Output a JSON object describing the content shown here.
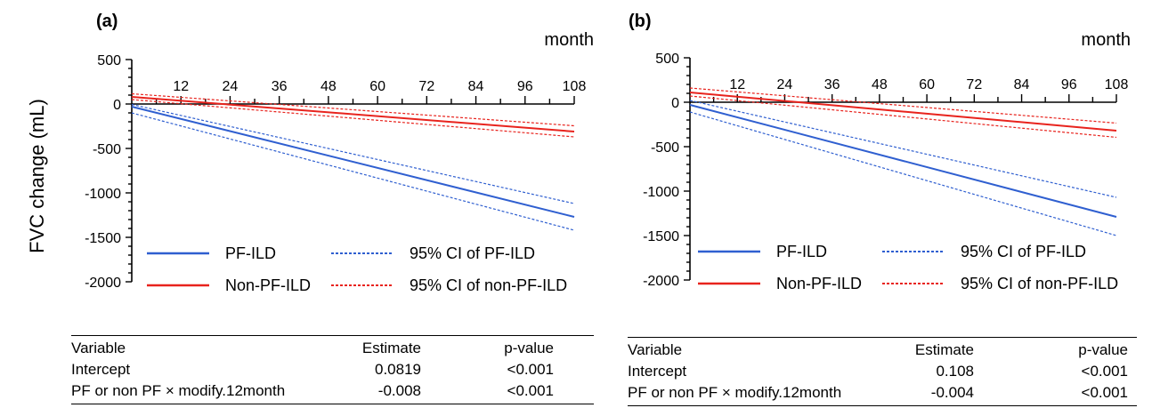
{
  "y_axis_label": "FVC change (mL)",
  "colors": {
    "pf": "#2f5fd0",
    "nonpf": "#e8231d",
    "axis": "#000000"
  },
  "legend": {
    "pf": "PF-ILD",
    "nonpf": "Non-PF-ILD",
    "pf_ci": "95% CI of PF-ILD",
    "nonpf_ci": "95% CI of non-PF-ILD"
  },
  "chart_data": [
    {
      "type": "line",
      "panel_label": "(a)",
      "xlabel": "month",
      "ylabel": "FVC change (mL)",
      "x_ticks": [
        12,
        24,
        36,
        48,
        60,
        72,
        84,
        96,
        108
      ],
      "y_ticks": [
        500,
        0,
        -500,
        -1000,
        -1500,
        -2000
      ],
      "xlim": [
        0,
        108
      ],
      "ylim": [
        -2000,
        500
      ],
      "x": [
        0,
        108
      ],
      "series": [
        {
          "name": "PF-ILD",
          "style": "solid",
          "values": [
            -30,
            -1270
          ]
        },
        {
          "name": "Non-PF-ILD",
          "style": "solid",
          "values": [
            80,
            -310
          ]
        },
        {
          "name": "95% CI of PF-ILD",
          "style": "dotted",
          "bound": "upper",
          "values": [
            -5,
            -1120
          ]
        },
        {
          "name": "95% CI of PF-ILD",
          "style": "dotted",
          "bound": "lower",
          "values": [
            -100,
            -1420
          ]
        },
        {
          "name": "95% CI of non-PF-ILD",
          "style": "dotted",
          "bound": "upper",
          "values": [
            115,
            -245
          ]
        },
        {
          "name": "95% CI of non-PF-ILD",
          "style": "dotted",
          "bound": "lower",
          "values": [
            50,
            -370
          ]
        }
      ],
      "legend_position": "bottom-center",
      "grid": false
    },
    {
      "type": "line",
      "panel_label": "(b)",
      "xlabel": "month",
      "ylabel": "",
      "x_ticks": [
        12,
        24,
        36,
        48,
        60,
        72,
        84,
        96,
        108
      ],
      "y_ticks": [
        500,
        0,
        -500,
        -1000,
        -1500,
        -2000
      ],
      "xlim": [
        0,
        108
      ],
      "ylim": [
        -2000,
        500
      ],
      "x": [
        0,
        108
      ],
      "series": [
        {
          "name": "PF-ILD",
          "style": "solid",
          "values": [
            -30,
            -1290
          ]
        },
        {
          "name": "Non-PF-ILD",
          "style": "solid",
          "values": [
            110,
            -320
          ]
        },
        {
          "name": "95% CI of PF-ILD",
          "style": "dotted",
          "bound": "upper",
          "values": [
            20,
            -1070
          ]
        },
        {
          "name": "95% CI of PF-ILD",
          "style": "dotted",
          "bound": "lower",
          "values": [
            -110,
            -1500
          ]
        },
        {
          "name": "95% CI of non-PF-ILD",
          "style": "dotted",
          "bound": "upper",
          "values": [
            160,
            -235
          ]
        },
        {
          "name": "95% CI of non-PF-ILD",
          "style": "dotted",
          "bound": "lower",
          "values": [
            70,
            -395
          ]
        }
      ],
      "legend_position": "bottom-center",
      "grid": false
    }
  ],
  "tables": [
    {
      "headers": [
        "Variable",
        "Estimate",
        "p-value"
      ],
      "rows": [
        [
          "Intercept",
          "0.0819",
          "<0.001"
        ],
        [
          "PF or non PF × modify.12month",
          "-0.008",
          "<0.001"
        ]
      ]
    },
    {
      "headers": [
        "Variable",
        "Estimate",
        "p-value"
      ],
      "rows": [
        [
          "Intercept",
          "0.108",
          "<0.001"
        ],
        [
          "PF or non PF × modify.12month",
          "-0.004",
          "<0.001"
        ]
      ]
    }
  ]
}
